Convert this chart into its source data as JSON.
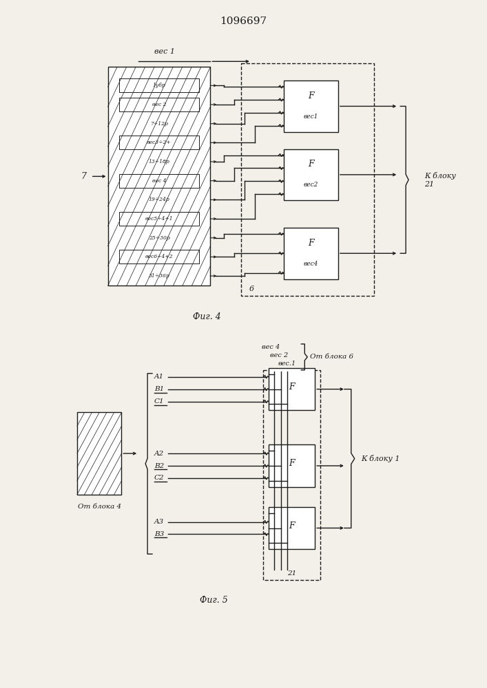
{
  "title": "1096697",
  "bg_color": "#f2f0e8",
  "line_color": "#1a1a1a",
  "fig4": {
    "caption": "Фиг. 4",
    "label_7": "7",
    "label_ves1": "вес 1",
    "label_k_bloku": "К блоку\n21",
    "label_6": "6",
    "inner_labels": [
      "1убр",
      "вес 2",
      "7÷12р",
      "вес3÷2+",
      "13÷18р",
      "вес 4",
      "19÷24р",
      "вес5÷4+1",
      "25÷30р",
      "вес6÷4+2",
      "31÷36р"
    ],
    "inner_boxed": [
      0,
      1,
      3,
      5,
      7,
      9
    ],
    "f_sublabels": [
      "вес1",
      "вес2",
      "вес4"
    ]
  },
  "fig5": {
    "caption": "Фиг. 5",
    "label_ot_bloka4": "От блока 4",
    "label_k_bloku1": "К блоку 1",
    "label_ot_bloka6": "От блока 6",
    "label_ves4": "вес 4",
    "label_ves2": "вес 2",
    "label_ves1": "вес.1",
    "label_21": "21",
    "groups": [
      [
        "A1",
        "B1",
        "C1"
      ],
      [
        "A2",
        "B2",
        "C2"
      ],
      [
        "A3",
        "B3"
      ]
    ],
    "underlined": [
      "B1",
      "C1",
      "B2",
      "C2",
      "B3"
    ]
  }
}
